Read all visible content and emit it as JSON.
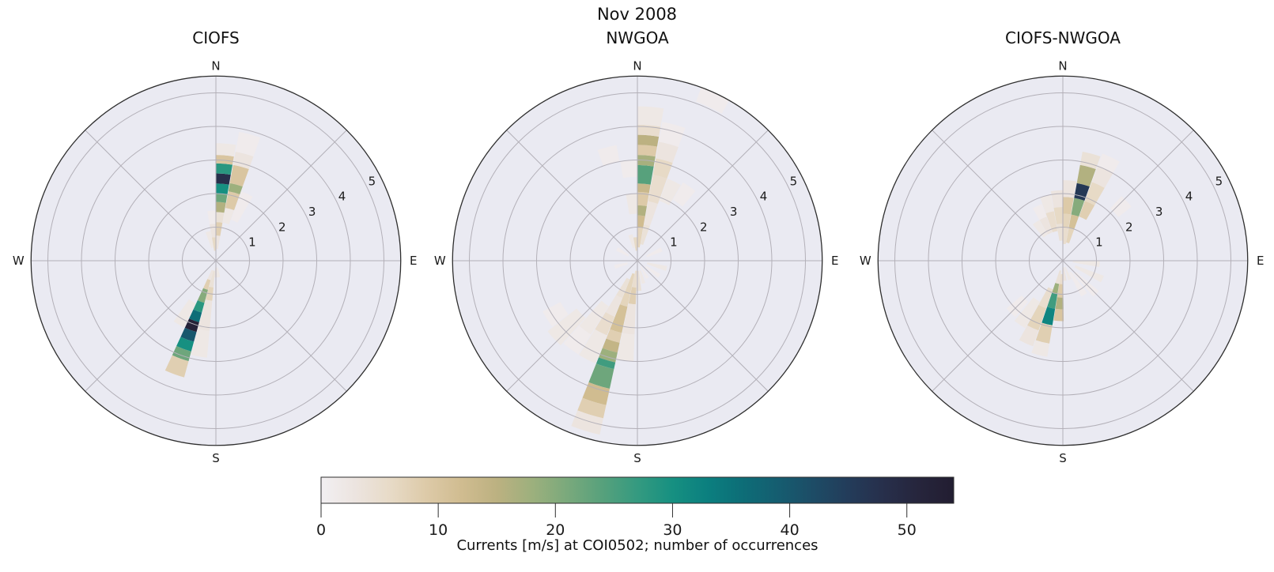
{
  "suptitle": "Nov 2008",
  "compass": {
    "n": "N",
    "e": "E",
    "s": "S",
    "w": "W"
  },
  "radial_ticks": [
    1,
    2,
    3,
    4,
    5
  ],
  "colors": {
    "plot_background": "#eaeaf2",
    "grid": "#b3b0b8",
    "spine": "#2e2e2e",
    "text": "#1a1a1a"
  },
  "colormap": {
    "vmin": 0,
    "vmax": 54,
    "stops": [
      [
        0,
        "#f2eff2"
      ],
      [
        3,
        "#ece4df"
      ],
      [
        6,
        "#e7dac6"
      ],
      [
        9,
        "#ddcaa8"
      ],
      [
        12,
        "#d0bc90"
      ],
      [
        15,
        "#bcb181"
      ],
      [
        18,
        "#9db07d"
      ],
      [
        21,
        "#7aa97c"
      ],
      [
        24,
        "#57a17c"
      ],
      [
        27,
        "#349a80"
      ],
      [
        30,
        "#169081"
      ],
      [
        33,
        "#0b7f7f"
      ],
      [
        36,
        "#0d6d77"
      ],
      [
        39,
        "#155d70"
      ],
      [
        42,
        "#1d4c66"
      ],
      [
        45,
        "#233c5a"
      ],
      [
        48,
        "#272f4b"
      ],
      [
        51,
        "#26253c"
      ],
      [
        54,
        "#221d31"
      ]
    ]
  },
  "colorbar": {
    "ticks": [
      0,
      10,
      20,
      30,
      40,
      50
    ],
    "label": "Currents [m/s] at COI0502; number of occurrences"
  },
  "chart_data": [
    {
      "type": "polar-rose-stacked",
      "title": "CIOFS",
      "angular_axis": "current direction (compass, N=0° clockwise)",
      "radial_axis": {
        "label": "current speed [m/s]",
        "ticks": [
          1,
          2,
          3,
          4,
          5
        ],
        "max": 5.5
      },
      "color_axis": {
        "label": "number of occurrences",
        "min": 0,
        "max": 54
      },
      "bin_width_deg": 9.6,
      "bins": [
        {
          "dir": 5,
          "segments": [
            [
              0.35,
              0.75,
              3
            ],
            [
              0.75,
              1.15,
              8
            ],
            [
              1.15,
              1.45,
              4
            ],
            [
              1.45,
              1.75,
              16
            ],
            [
              1.75,
              2.0,
              22
            ],
            [
              2.0,
              2.3,
              30
            ],
            [
              2.3,
              2.6,
              48
            ],
            [
              2.6,
              2.9,
              28
            ],
            [
              2.9,
              3.15,
              10
            ],
            [
              3.15,
              3.5,
              2
            ]
          ]
        },
        {
          "dir": 15,
          "segments": [
            [
              1.15,
              1.6,
              2
            ],
            [
              1.6,
              2.1,
              9
            ],
            [
              2.1,
              2.35,
              18
            ],
            [
              2.35,
              2.9,
              10
            ],
            [
              2.9,
              3.3,
              3
            ],
            [
              3.3,
              3.9,
              1
            ]
          ]
        },
        {
          "dir": 25,
          "segments": [
            [
              1.3,
              2.2,
              1
            ]
          ]
        },
        {
          "dir": 355,
          "segments": [
            [
              0.3,
              0.7,
              6
            ],
            [
              0.7,
              1.1,
              3
            ],
            [
              1.1,
              1.5,
              1
            ]
          ]
        },
        {
          "dir": 345,
          "segments": [
            [
              0.4,
              0.9,
              2
            ]
          ]
        },
        {
          "dir": 200,
          "segments": [
            [
              0.3,
              0.6,
              3
            ],
            [
              0.6,
              0.9,
              8
            ],
            [
              0.9,
              1.3,
              20
            ],
            [
              1.3,
              1.6,
              28
            ],
            [
              1.6,
              1.9,
              36
            ],
            [
              1.9,
              2.2,
              52
            ],
            [
              2.2,
              2.5,
              40
            ],
            [
              2.5,
              2.8,
              30
            ],
            [
              2.8,
              3.1,
              22
            ],
            [
              3.1,
              3.6,
              8
            ]
          ]
        },
        {
          "dir": 190,
          "segments": [
            [
              0.3,
              0.8,
              4
            ],
            [
              0.8,
              1.2,
              7
            ],
            [
              1.2,
              2.1,
              3
            ],
            [
              2.1,
              2.9,
              2
            ]
          ]
        },
        {
          "dir": 210,
          "segments": [
            [
              1.4,
              2.2,
              2
            ]
          ]
        },
        {
          "dir": 180,
          "segments": [
            [
              0.2,
              0.5,
              3
            ]
          ]
        },
        {
          "dir": 170,
          "segments": [
            [
              0.2,
              0.5,
              2
            ]
          ]
        }
      ]
    },
    {
      "type": "polar-rose-stacked",
      "title": "NWGOA",
      "angular_axis": "current direction (compass, N=0° clockwise)",
      "radial_axis": {
        "label": "current speed [m/s]",
        "ticks": [
          1,
          2,
          3,
          4,
          5
        ],
        "max": 5.5
      },
      "color_axis": {
        "label": "number of occurrences",
        "min": 0,
        "max": 54
      },
      "bin_width_deg": 9.6,
      "bins": [
        {
          "dir": 5,
          "segments": [
            [
              0.4,
              1.0,
              7
            ],
            [
              1.0,
              1.35,
              12
            ],
            [
              1.35,
              1.65,
              16
            ],
            [
              1.65,
              2.05,
              9
            ],
            [
              2.05,
              2.3,
              13
            ],
            [
              2.3,
              2.85,
              24
            ],
            [
              2.85,
              3.15,
              17
            ],
            [
              3.15,
              3.45,
              9
            ],
            [
              3.45,
              3.75,
              15
            ],
            [
              3.75,
              4.05,
              5
            ],
            [
              4.05,
              4.6,
              2
            ]
          ]
        },
        {
          "dir": 15,
          "segments": [
            [
              0.5,
              1.1,
              4
            ],
            [
              1.1,
              1.8,
              3
            ],
            [
              1.8,
              2.6,
              5
            ],
            [
              2.6,
              3.1,
              6
            ],
            [
              3.1,
              3.6,
              3
            ],
            [
              3.6,
              4.2,
              1
            ]
          ]
        },
        {
          "dir": 25,
          "segments": [
            [
              1.9,
              2.6,
              2
            ],
            [
              5.05,
              5.5,
              1
            ]
          ]
        },
        {
          "dir": 35,
          "segments": [
            [
              2.1,
              2.7,
              1
            ]
          ]
        },
        {
          "dir": 355,
          "segments": [
            [
              0.3,
              0.7,
              6
            ],
            [
              1.4,
              2.0,
              2
            ],
            [
              2.5,
              3.0,
              1
            ]
          ]
        },
        {
          "dir": 345,
          "segments": [
            [
              0.4,
              0.8,
              2
            ],
            [
              3.0,
              3.5,
              1
            ]
          ]
        },
        {
          "dir": 65,
          "segments": [
            [
              0.3,
              0.8,
              1
            ]
          ]
        },
        {
          "dir": 105,
          "segments": [
            [
              0.3,
              0.9,
              2
            ]
          ]
        },
        {
          "dir": 125,
          "segments": [
            [
              0.3,
              0.8,
              1
            ]
          ]
        },
        {
          "dir": 150,
          "segments": [
            [
              0.2,
              0.6,
              1
            ]
          ]
        },
        {
          "dir": 165,
          "segments": [
            [
              0.3,
              0.7,
              2
            ]
          ]
        },
        {
          "dir": 177,
          "segments": [
            [
              0.3,
              0.9,
              4
            ]
          ]
        },
        {
          "dir": 187,
          "segments": [
            [
              0.3,
              0.8,
              5
            ],
            [
              0.8,
              1.3,
              8
            ],
            [
              1.3,
              2.2,
              3
            ],
            [
              2.2,
              3.0,
              2
            ]
          ]
        },
        {
          "dir": 197,
          "segments": [
            [
              0.4,
              1.4,
              7
            ],
            [
              1.4,
              2.2,
              11
            ],
            [
              2.2,
              2.5,
              8
            ],
            [
              2.5,
              2.8,
              14
            ],
            [
              2.8,
              3.1,
              18
            ],
            [
              3.1,
              3.3,
              26
            ],
            [
              3.3,
              3.9,
              22
            ],
            [
              3.9,
              4.4,
              12
            ],
            [
              4.4,
              4.8,
              8
            ],
            [
              4.8,
              5.3,
              3
            ]
          ]
        },
        {
          "dir": 207,
          "segments": [
            [
              0.6,
              1.2,
              4
            ],
            [
              1.2,
              1.8,
              3
            ],
            [
              1.8,
              2.4,
              5
            ],
            [
              2.4,
              3.3,
              2
            ]
          ]
        },
        {
          "dir": 217,
          "segments": [
            [
              1.6,
              2.6,
              2
            ],
            [
              2.6,
              3.3,
              1
            ]
          ]
        },
        {
          "dir": 227,
          "segments": [
            [
              2.3,
              3.4,
              2
            ]
          ]
        },
        {
          "dir": 237,
          "segments": [
            [
              2.6,
              3.2,
              1
            ]
          ]
        },
        {
          "dir": 255,
          "segments": [
            [
              0.3,
              0.7,
              1
            ]
          ]
        },
        {
          "dir": 300,
          "segments": [
            [
              0.3,
              0.7,
              1
            ]
          ]
        }
      ]
    },
    {
      "type": "polar-rose-stacked",
      "title": "CIOFS-NWGOA",
      "angular_axis": "current direction (compass, N=0° clockwise)",
      "radial_axis": {
        "label": "current speed [m/s]",
        "ticks": [
          1,
          2,
          3,
          4,
          5
        ],
        "max": 5.5
      },
      "color_axis": {
        "label": "number of occurrences",
        "min": 0,
        "max": 54
      },
      "bin_width_deg": 9.6,
      "bins": [
        {
          "dir": 15,
          "segments": [
            [
              0.55,
              1.0,
              7
            ],
            [
              1.0,
              1.4,
              11
            ],
            [
              1.4,
              1.9,
              20
            ],
            [
              1.9,
              2.35,
              46
            ],
            [
              2.35,
              2.9,
              16
            ],
            [
              2.9,
              3.3,
              4
            ]
          ]
        },
        {
          "dir": 25,
          "segments": [
            [
              1.4,
              1.9,
              8
            ],
            [
              1.9,
              2.5,
              6
            ],
            [
              2.5,
              3.0,
              3
            ],
            [
              3.0,
              3.4,
              1
            ]
          ]
        },
        {
          "dir": 5,
          "segments": [
            [
              0.5,
              1.0,
              5
            ],
            [
              1.0,
              1.4,
              7
            ],
            [
              1.4,
              1.9,
              9
            ],
            [
              1.9,
              2.4,
              3
            ]
          ]
        },
        {
          "dir": 355,
          "segments": [
            [
              0.6,
              1.1,
              4
            ],
            [
              1.1,
              1.6,
              6
            ],
            [
              1.6,
              2.1,
              3
            ]
          ]
        },
        {
          "dir": 345,
          "segments": [
            [
              0.9,
              1.5,
              5
            ],
            [
              1.5,
              2.0,
              2
            ]
          ]
        },
        {
          "dir": 335,
          "segments": [
            [
              0.9,
              1.4,
              3
            ],
            [
              1.4,
              1.8,
              1
            ]
          ]
        },
        {
          "dir": 325,
          "segments": [
            [
              0.9,
              1.4,
              2
            ]
          ]
        },
        {
          "dir": 47,
          "segments": [
            [
              2.1,
              2.6,
              1
            ]
          ]
        },
        {
          "dir": 95,
          "segments": [
            [
              0.3,
              1.1,
              2
            ]
          ]
        },
        {
          "dir": 115,
          "segments": [
            [
              0.4,
              1.3,
              2
            ]
          ]
        },
        {
          "dir": 135,
          "segments": [
            [
              0.5,
              1.4,
              1
            ]
          ]
        },
        {
          "dir": 148,
          "segments": [
            [
              0.4,
              1.2,
              1
            ]
          ]
        },
        {
          "dir": 160,
          "segments": [
            [
              0.2,
              0.6,
              2
            ]
          ]
        },
        {
          "dir": 174,
          "segments": [
            [
              0.2,
              0.6,
              3
            ]
          ]
        },
        {
          "dir": 184,
          "segments": [
            [
              0.4,
              0.7,
              5
            ],
            [
              0.7,
              1.1,
              9
            ],
            [
              1.1,
              1.45,
              16
            ],
            [
              1.45,
              1.8,
              10
            ]
          ]
        },
        {
          "dir": 194,
          "segments": [
            [
              0.3,
              0.7,
              4
            ],
            [
              0.7,
              1.0,
              18
            ],
            [
              1.0,
              1.45,
              26
            ],
            [
              1.45,
              1.95,
              32
            ],
            [
              1.95,
              2.5,
              8
            ],
            [
              2.5,
              2.9,
              2
            ]
          ]
        },
        {
          "dir": 204,
          "segments": [
            [
              0.9,
              1.5,
              5
            ],
            [
              1.5,
              2.2,
              7
            ],
            [
              2.2,
              2.7,
              3
            ]
          ]
        },
        {
          "dir": 214,
          "segments": [
            [
              1.4,
              2.3,
              2
            ]
          ]
        },
        {
          "dir": 225,
          "segments": [
            [
              1.6,
              2.2,
              1
            ]
          ]
        }
      ]
    }
  ]
}
